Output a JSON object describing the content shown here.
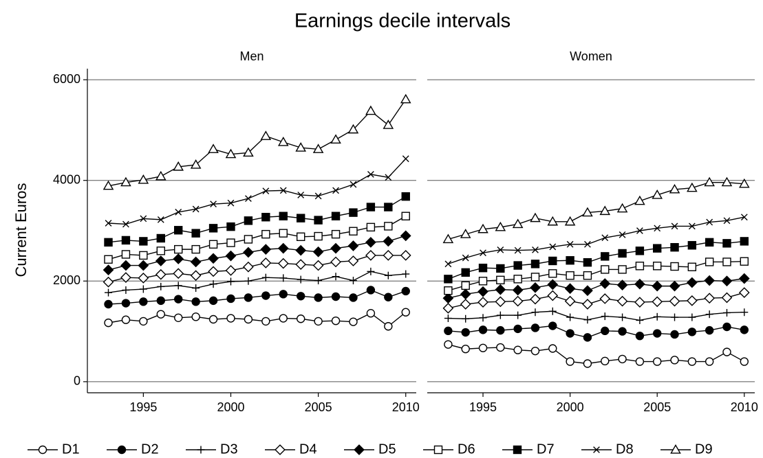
{
  "chart_data": {
    "type": "line",
    "title": "Earnings decile intervals",
    "ylabel": "Current Euros",
    "color": "#000000",
    "grid": true,
    "legend_position": "bottom",
    "x": [
      1993,
      1994,
      1995,
      1996,
      1997,
      1998,
      1999,
      2000,
      2001,
      2002,
      2003,
      2004,
      2005,
      2006,
      2007,
      2008,
      2009,
      2010
    ],
    "xlim": [
      1991.8,
      2010.6
    ],
    "xticks": [
      1995,
      2000,
      2005,
      2010
    ],
    "ylim": [
      -220,
      6220
    ],
    "yticks": [
      0,
      2000,
      4000,
      6000
    ],
    "legend": [
      {
        "name": "D1",
        "marker": "circle-open"
      },
      {
        "name": "D2",
        "marker": "circle-filled"
      },
      {
        "name": "D3",
        "marker": "plus"
      },
      {
        "name": "D4",
        "marker": "diamond-open"
      },
      {
        "name": "D5",
        "marker": "diamond-filled"
      },
      {
        "name": "D6",
        "marker": "square-open"
      },
      {
        "name": "D7",
        "marker": "square-filled"
      },
      {
        "name": "D8",
        "marker": "x"
      },
      {
        "name": "D9",
        "marker": "triangle-open"
      }
    ],
    "panels": [
      {
        "title": "Men",
        "series": [
          {
            "values": [
              1170,
              1230,
              1200,
              1340,
              1270,
              1290,
              1240,
              1260,
              1240,
              1200,
              1260,
              1250,
              1200,
              1210,
              1190,
              1360,
              1100,
              1380
            ]
          },
          {
            "values": [
              1540,
              1560,
              1590,
              1610,
              1640,
              1590,
              1610,
              1650,
              1670,
              1710,
              1740,
              1700,
              1670,
              1690,
              1670,
              1820,
              1680,
              1800
            ]
          },
          {
            "values": [
              1770,
              1820,
              1840,
              1890,
              1910,
              1860,
              1940,
              1990,
              2000,
              2070,
              2060,
              2030,
              2010,
              2090,
              2010,
              2190,
              2110,
              2140
            ]
          },
          {
            "values": [
              1980,
              2070,
              2060,
              2130,
              2150,
              2110,
              2190,
              2210,
              2280,
              2360,
              2350,
              2330,
              2310,
              2380,
              2400,
              2510,
              2510,
              2510
            ]
          },
          {
            "values": [
              2220,
              2310,
              2310,
              2400,
              2440,
              2380,
              2450,
              2500,
              2570,
              2630,
              2650,
              2610,
              2580,
              2650,
              2700,
              2770,
              2790,
              2900
            ]
          },
          {
            "values": [
              2430,
              2530,
              2510,
              2600,
              2630,
              2630,
              2730,
              2760,
              2830,
              2930,
              2950,
              2880,
              2890,
              2930,
              2990,
              3070,
              3090,
              3290
            ]
          },
          {
            "values": [
              2770,
              2810,
              2790,
              2850,
              3010,
              2950,
              3050,
              3080,
              3200,
              3270,
              3290,
              3250,
              3210,
              3290,
              3360,
              3470,
              3470,
              3680
            ]
          },
          {
            "values": [
              3150,
              3130,
              3240,
              3220,
              3370,
              3430,
              3530,
              3550,
              3640,
              3790,
              3800,
              3710,
              3690,
              3800,
              3920,
              4120,
              4060,
              4430
            ]
          },
          {
            "values": [
              3890,
              3960,
              4010,
              4080,
              4270,
              4310,
              4620,
              4520,
              4550,
              4880,
              4760,
              4650,
              4620,
              4810,
              5010,
              5380,
              5100,
              5610
            ]
          }
        ]
      },
      {
        "title": "Women",
        "series": [
          {
            "values": [
              740,
              650,
              670,
              680,
              630,
              610,
              660,
              400,
              360,
              410,
              450,
              400,
              400,
              430,
              400,
              400,
              590,
              400
            ]
          },
          {
            "values": [
              1010,
              980,
              1030,
              1020,
              1050,
              1070,
              1110,
              960,
              880,
              1010,
              1000,
              910,
              960,
              940,
              990,
              1020,
              1090,
              1030
            ]
          },
          {
            "values": [
              1260,
              1250,
              1270,
              1320,
              1320,
              1380,
              1400,
              1280,
              1230,
              1300,
              1280,
              1220,
              1290,
              1280,
              1280,
              1340,
              1370,
              1380
            ]
          },
          {
            "values": [
              1460,
              1540,
              1580,
              1590,
              1600,
              1640,
              1710,
              1600,
              1540,
              1650,
              1600,
              1580,
              1590,
              1600,
              1610,
              1660,
              1670,
              1770
            ]
          },
          {
            "values": [
              1660,
              1740,
              1790,
              1830,
              1820,
              1870,
              1930,
              1850,
              1810,
              1950,
              1920,
              1940,
              1900,
              1900,
              1970,
              2010,
              2000,
              2050
            ]
          },
          {
            "values": [
              1810,
              1910,
              2000,
              2020,
              2040,
              2080,
              2150,
              2110,
              2110,
              2230,
              2230,
              2300,
              2300,
              2290,
              2280,
              2380,
              2380,
              2390
            ]
          },
          {
            "values": [
              2040,
              2170,
              2260,
              2250,
              2310,
              2340,
              2400,
              2410,
              2370,
              2490,
              2550,
              2600,
              2650,
              2670,
              2710,
              2770,
              2750,
              2790
            ]
          },
          {
            "values": [
              2340,
              2460,
              2560,
              2620,
              2610,
              2620,
              2680,
              2730,
              2730,
              2860,
              2920,
              3000,
              3050,
              3090,
              3090,
              3170,
              3200,
              3270
            ]
          },
          {
            "values": [
              2830,
              2930,
              3030,
              3070,
              3130,
              3250,
              3180,
              3180,
              3360,
              3390,
              3440,
              3590,
              3710,
              3820,
              3850,
              3960,
              3960,
              3930
            ]
          }
        ]
      }
    ]
  }
}
